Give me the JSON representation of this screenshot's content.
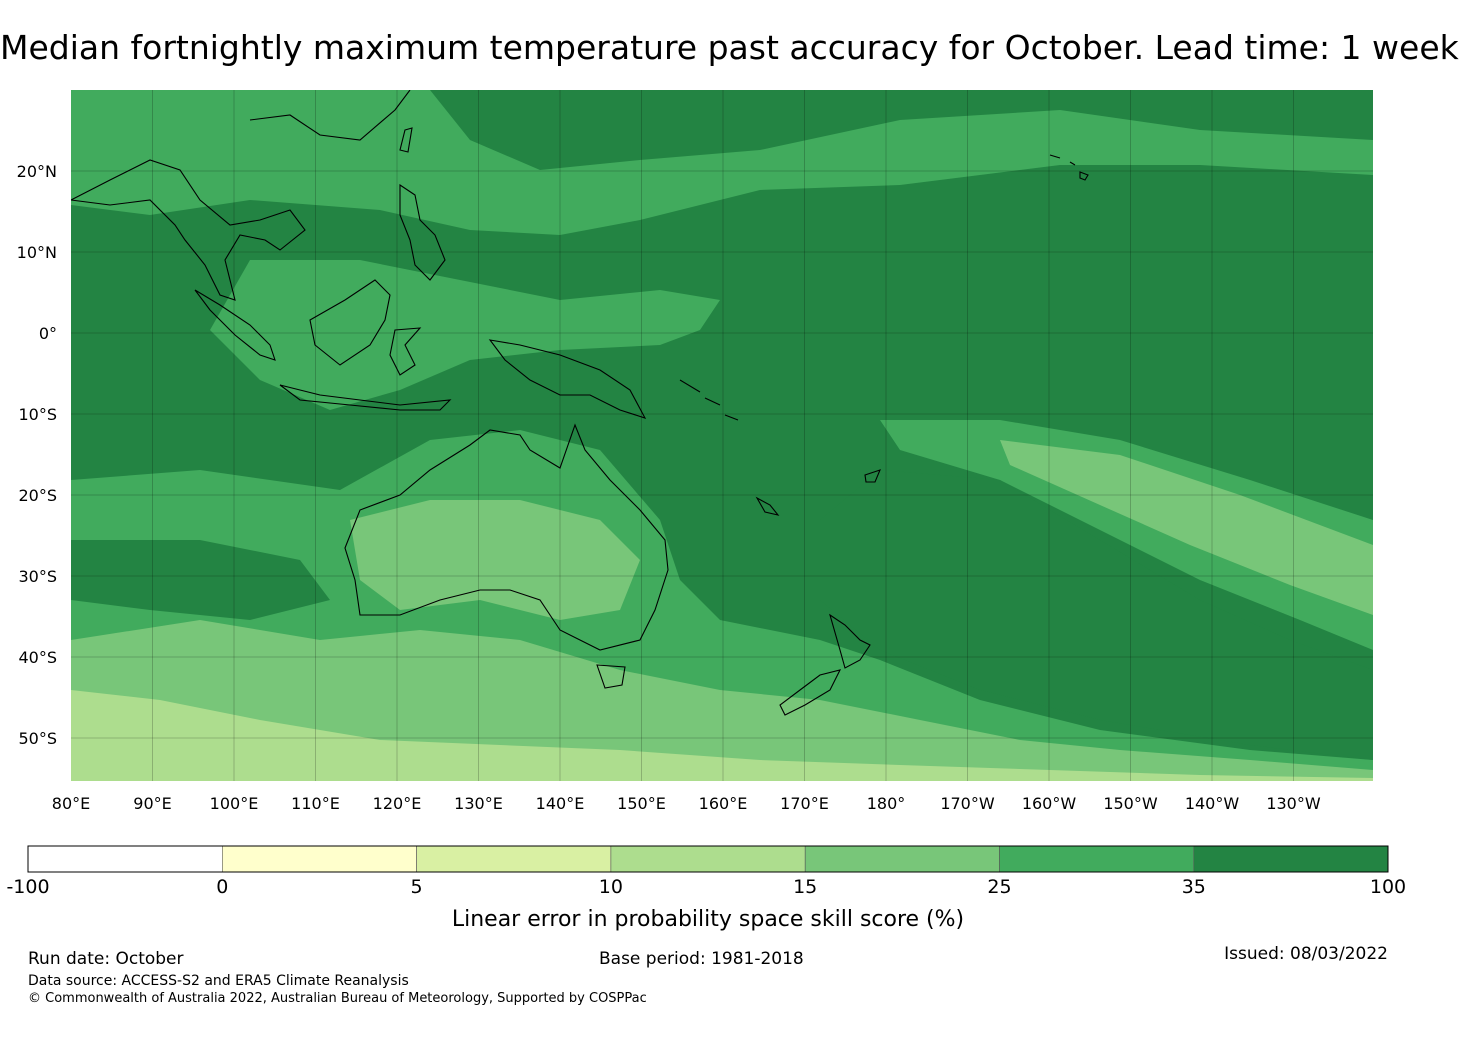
{
  "title": "Median fortnightly maximum temperature past accuracy for October. Lead time: 1 week",
  "map": {
    "lon_labels": [
      "80°E",
      "90°E",
      "100°E",
      "110°E",
      "120°E",
      "130°E",
      "140°E",
      "150°E",
      "160°E",
      "170°E",
      "180°",
      "170°W",
      "160°W",
      "150°W",
      "140°W",
      "130°W"
    ],
    "lat_labels": [
      "20°N",
      "10°N",
      "0°",
      "10°S",
      "20°S",
      "30°S",
      "40°S",
      "50°S"
    ]
  },
  "colorbar": {
    "ticks": [
      "-100",
      "0",
      "5",
      "10",
      "15",
      "25",
      "35",
      "100"
    ],
    "colors": [
      "#ffffff",
      "#ffffcc",
      "#d9f0a3",
      "#addd8e",
      "#78c679",
      "#41ab5d",
      "#238443"
    ],
    "label": "Linear error in probability space skill score (%)"
  },
  "footer": {
    "run_date": "Run date: October",
    "base_period": "Base period: 1981-2018",
    "issued": "Issued: 08/03/2022",
    "data_source": "Data source: ACCESS-S2 and ERA5 Climate Reanalysis",
    "copyright": "© Commonwealth of Australia 2022, Australian Bureau of Meteorology, Supported by COSPPac"
  }
}
